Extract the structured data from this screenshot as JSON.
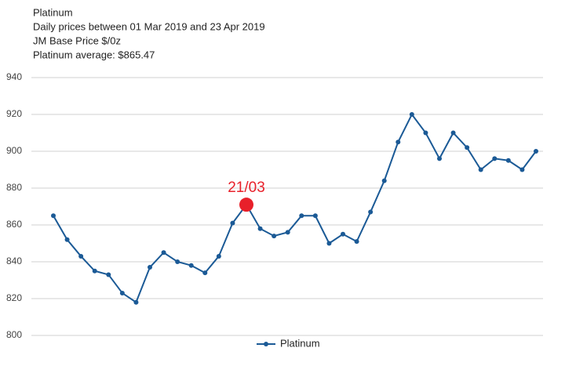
{
  "chart_data": {
    "type": "line",
    "title": "Platinum",
    "subtitle": [
      "Daily prices between 01 Mar 2019 and 23 Apr 2019",
      "JM Base Price $/0z",
      "Platinum average: $865.47"
    ],
    "categories": [
      null,
      null,
      null,
      null,
      null,
      null,
      null,
      null,
      null,
      null,
      null,
      null,
      null,
      null,
      null,
      null,
      null,
      null,
      null,
      null,
      null,
      null,
      null,
      null,
      null,
      null,
      null,
      null,
      null,
      null,
      null,
      null,
      null,
      null,
      null,
      null
    ],
    "series": [
      {
        "name": "Platinum",
        "color": "#1b5a96",
        "values": [
          865,
          852,
          843,
          835,
          833,
          823,
          818,
          837,
          845,
          840,
          838,
          834,
          843,
          861,
          871,
          858,
          854,
          856,
          865,
          865,
          850,
          855,
          851,
          867,
          884,
          905,
          920,
          910,
          896,
          910,
          902,
          890,
          896,
          895,
          890,
          900
        ]
      }
    ],
    "highlight": {
      "index": 14,
      "label": "21/03",
      "color": "#e8202a"
    },
    "ylim": [
      800,
      940
    ],
    "yticks": [
      800,
      820,
      840,
      860,
      880,
      900,
      920,
      940
    ],
    "grid": true,
    "legend": "bottom"
  }
}
